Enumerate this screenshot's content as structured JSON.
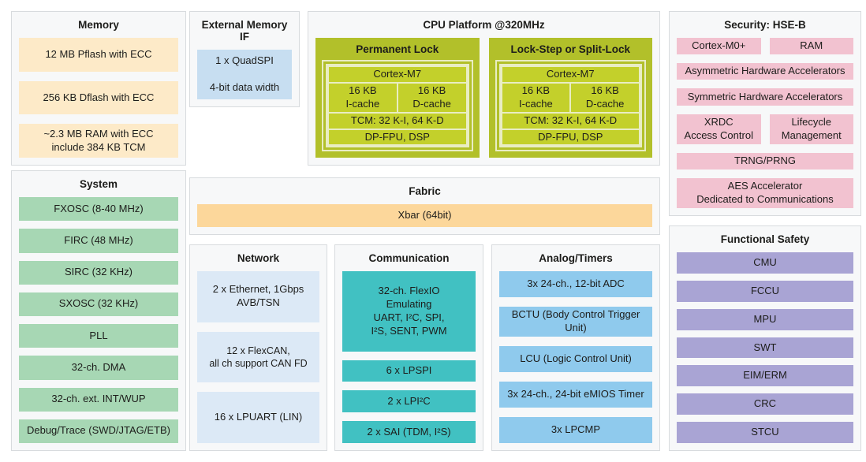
{
  "colors": {
    "section_bg": "#f7f8f9",
    "section_border": "#d8dbde",
    "memory_box": "#fdeac8",
    "fabric_box": "#fcd79b",
    "ext_memory_box": "#c7def1",
    "network_box": "#dce9f6",
    "analog_box": "#8fcaed",
    "communication_box": "#41c1c2",
    "system_box": "#a7d7b4",
    "security_box": "#f2c2d0",
    "safety_box": "#a9a4d4",
    "cpu_outer": "#b2c02a",
    "cpu_item": "#c3d02b",
    "cpu_frame": "#e9edc4",
    "text": "#1d1d1b"
  },
  "sections": {
    "memory": {
      "title": "Memory",
      "items": [
        "12 MB Pflash with ECC",
        "256 KB Dflash with ECC",
        "~2.3 MB RAM with ECC\ninclude 384 KB TCM"
      ]
    },
    "external_memory_if": {
      "title": "External Memory IF",
      "items": [
        "1 x QuadSPI\n\n4-bit data width"
      ]
    },
    "cpu_platform": {
      "title": "CPU Platform @320MHz",
      "clusters": [
        {
          "title": "Permanent Lock",
          "core": "Cortex-M7",
          "caches": [
            "16 KB\nI-cache",
            "16 KB\nD-cache"
          ],
          "tcm": "TCM: 32 K-I, 64 K-D",
          "fpu": "DP-FPU, DSP"
        },
        {
          "title": "Lock-Step or Split-Lock",
          "core": "Cortex-M7",
          "caches": [
            "16 KB\nI-cache",
            "16 KB\nD-cache"
          ],
          "tcm": "TCM: 32 K-I, 64 K-D",
          "fpu": "DP-FPU, DSP"
        }
      ]
    },
    "security": {
      "title": "Security: HSE-B",
      "row1": [
        "Cortex-M0+",
        "RAM"
      ],
      "asym": "Asymmetric Hardware Accelerators",
      "sym": "Symmetric Hardware Accelerators",
      "row2": [
        "XRDC\nAccess Control",
        "Lifecycle\nManagement"
      ],
      "trng": "TRNG/PRNG",
      "aes": "AES Accelerator\nDedicated to Communications"
    },
    "system": {
      "title": "System",
      "items": [
        "FXOSC (8-40 MHz)",
        "FIRC (48 MHz)",
        "SIRC (32 KHz)",
        "SXOSC (32 KHz)",
        "PLL",
        "32-ch. DMA",
        "32-ch. ext. INT/WUP",
        "Debug/Trace (SWD/JTAG/ETB)"
      ]
    },
    "fabric": {
      "title": "Fabric",
      "items": [
        "Xbar (64bit)"
      ]
    },
    "network": {
      "title": "Network",
      "items": [
        "2 x Ethernet, 1Gbps\nAVB/TSN",
        "12 x FlexCAN,\nall ch support CAN FD",
        "16 x LPUART (LIN)"
      ]
    },
    "communication": {
      "title": "Communication",
      "items": [
        "32-ch. FlexIO\nEmulating\nUART, I²C, SPI,\nI²S, SENT, PWM",
        "6 x LPSPI",
        "2 x LPI²C",
        "2 x SAI (TDM, I²S)"
      ]
    },
    "analog_timers": {
      "title": "Analog/Timers",
      "items": [
        "3x 24-ch., 12-bit ADC",
        "BCTU (Body Control Trigger Unit)",
        "LCU (Logic Control Unit)",
        "3x 24-ch., 24-bit eMIOS Timer",
        "3x LPCMP"
      ]
    },
    "functional_safety": {
      "title": "Functional Safety",
      "items": [
        "CMU",
        "FCCU",
        "MPU",
        "SWT",
        "EIM/ERM",
        "CRC",
        "STCU"
      ]
    }
  }
}
